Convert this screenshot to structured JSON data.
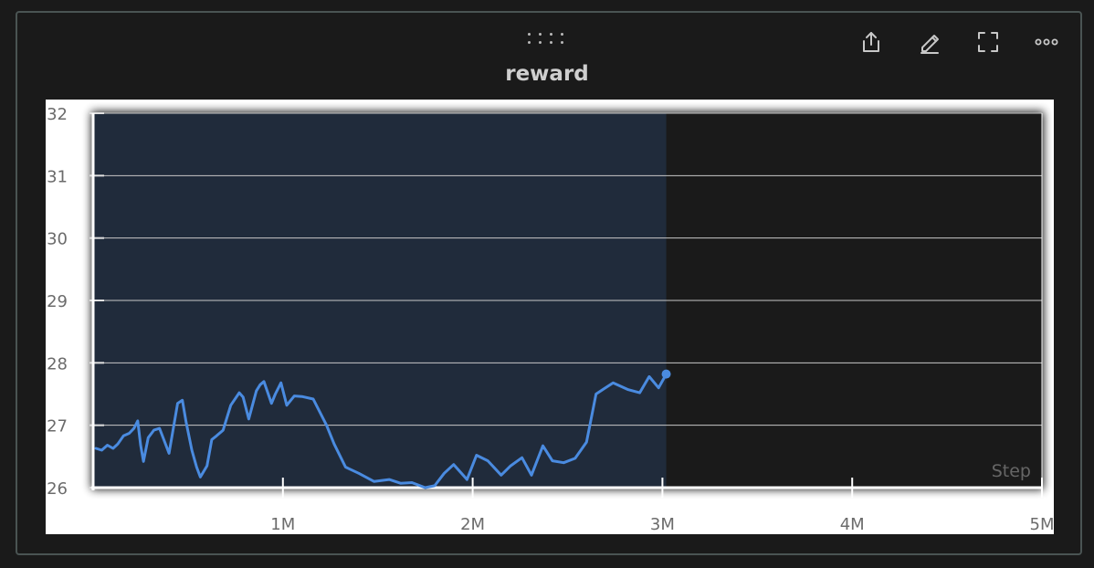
{
  "panel": {
    "title": "reward",
    "toolbar": [
      {
        "name": "share-icon"
      },
      {
        "name": "edit-icon"
      },
      {
        "name": "fullscreen-icon"
      },
      {
        "name": "more-icon"
      }
    ]
  },
  "colors": {
    "background": "#1a1a1a",
    "plot_background": "#1a1a1a",
    "highlight": "#202b3b",
    "line": "#4a8be0",
    "grid": "#c8c8c8"
  },
  "chart_data": {
    "type": "line",
    "title": "reward",
    "xlabel": "Step",
    "ylabel": "",
    "xlim": [
      0,
      5000000
    ],
    "ylim": [
      26,
      32
    ],
    "y_ticks": [
      "26",
      "27",
      "28",
      "29",
      "30",
      "31",
      "32"
    ],
    "x_ticks": [
      "1M",
      "2M",
      "3M",
      "4M",
      "5M"
    ],
    "highlight_range": [
      0,
      3020000
    ],
    "series": [
      {
        "name": "",
        "x": [
          15000,
          45000,
          75000,
          105000,
          130000,
          160000,
          190000,
          215000,
          235000,
          250000,
          265000,
          290000,
          320000,
          350000,
          400000,
          445000,
          470000,
          490000,
          520000,
          545000,
          565000,
          600000,
          625000,
          650000,
          685000,
          725000,
          770000,
          790000,
          820000,
          860000,
          880000,
          900000,
          940000,
          960000,
          990000,
          1020000,
          1060000,
          1100000,
          1160000,
          1230000,
          1270000,
          1330000,
          1400000,
          1480000,
          1560000,
          1620000,
          1680000,
          1750000,
          1800000,
          1850000,
          1900000,
          1970000,
          2020000,
          2080000,
          2150000,
          2200000,
          2260000,
          2310000,
          2370000,
          2420000,
          2480000,
          2540000,
          2600000,
          2650000,
          2690000,
          2740000,
          2820000,
          2880000,
          2930000,
          2980000,
          3020000
        ],
        "values": [
          26.63,
          26.6,
          26.68,
          26.63,
          26.7,
          26.83,
          26.87,
          26.95,
          27.07,
          26.68,
          26.42,
          26.8,
          26.92,
          26.95,
          26.55,
          27.35,
          27.4,
          27.05,
          26.6,
          26.33,
          26.17,
          26.35,
          26.77,
          26.83,
          26.92,
          27.32,
          27.52,
          27.45,
          27.1,
          27.55,
          27.65,
          27.7,
          27.35,
          27.5,
          27.68,
          27.32,
          27.47,
          27.46,
          27.42,
          27.0,
          26.7,
          26.33,
          26.23,
          26.1,
          26.13,
          26.07,
          26.08,
          26.0,
          26.03,
          26.23,
          26.37,
          26.13,
          26.52,
          26.43,
          26.2,
          26.35,
          26.48,
          26.2,
          26.67,
          26.43,
          26.4,
          26.47,
          26.73,
          27.5,
          27.58,
          27.68,
          27.57,
          27.52,
          27.78,
          27.6,
          27.82
        ]
      }
    ]
  }
}
